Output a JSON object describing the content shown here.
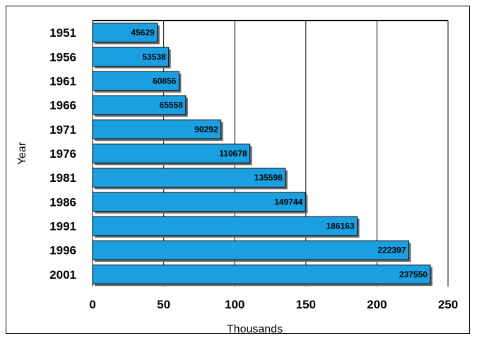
{
  "chart_data": {
    "type": "bar",
    "orientation": "horizontal",
    "title": "",
    "xlabel": "Thousands",
    "ylabel": "Year",
    "categories": [
      "1951",
      "1956",
      "1961",
      "1966",
      "1971",
      "1976",
      "1981",
      "1986",
      "1991",
      "1996",
      "2001"
    ],
    "values": [
      45629,
      53538,
      60856,
      65558,
      90292,
      110678,
      135598,
      149744,
      186163,
      222397,
      237550
    ],
    "data_labels": [
      "45629",
      "53538",
      "60856",
      "65558",
      "90292",
      "110678",
      "135598",
      "149744",
      "186163",
      "222397",
      "237550"
    ],
    "xlim": [
      0,
      250
    ],
    "x_ticks": [
      "0",
      "50",
      "100",
      "150",
      "200",
      "250"
    ],
    "value_scale": 1000,
    "grid": "vertical",
    "legend": "none",
    "colors": {
      "bar": "#1a9fe0",
      "bar_edge": "#000000",
      "shadow": "#6e6e6e"
    }
  }
}
